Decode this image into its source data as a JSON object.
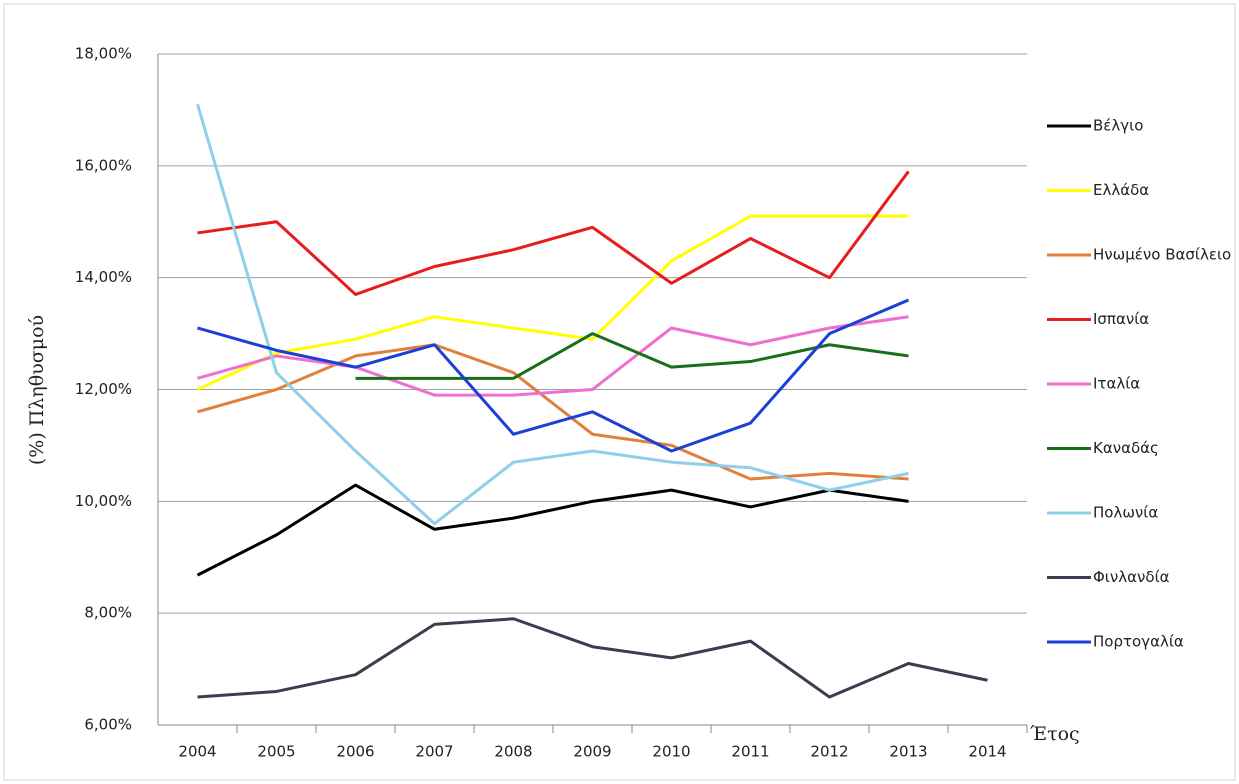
{
  "chart_data": {
    "type": "line",
    "y_label": "(%) Πληθυσμού",
    "x_label": "Έτος",
    "categories": [
      "2004",
      "2005",
      "2006",
      "2007",
      "2008",
      "2009",
      "2010",
      "2011",
      "2012",
      "2013",
      "2014"
    ],
    "ylim": [
      6,
      18
    ],
    "yticks": [
      {
        "value": 6,
        "label": "6,00%"
      },
      {
        "value": 8,
        "label": "8,00%"
      },
      {
        "value": 10,
        "label": "10,00%"
      },
      {
        "value": 12,
        "label": "12,00%"
      },
      {
        "value": 14,
        "label": "14,00%"
      },
      {
        "value": 16,
        "label": "16,00%"
      },
      {
        "value": 18,
        "label": "18,00%"
      }
    ],
    "grid": true,
    "legend": "right",
    "series": [
      {
        "name": "Βέλγιο",
        "color": "#000000",
        "values": [
          8.68,
          9.4,
          10.29,
          9.5,
          9.7,
          10.0,
          10.2,
          9.9,
          10.2,
          10.0,
          null
        ]
      },
      {
        "name": "Ελλάδα",
        "color": "#ffff00",
        "values": [
          12.0,
          12.65,
          12.9,
          13.3,
          13.1,
          12.9,
          14.3,
          15.1,
          15.1,
          15.1,
          null
        ]
      },
      {
        "name": "Ηνωμένο Βασίλειο",
        "color": "#e0803a",
        "values": [
          11.6,
          12.0,
          12.6,
          12.8,
          12.3,
          11.2,
          11.0,
          10.4,
          10.5,
          10.4,
          null
        ]
      },
      {
        "name": "Ισπανία",
        "color": "#e81c1c",
        "values": [
          14.8,
          15.0,
          13.7,
          14.2,
          14.5,
          14.9,
          13.9,
          14.7,
          14.0,
          15.9,
          null
        ]
      },
      {
        "name": "Ιταλία",
        "color": "#ee6fcf",
        "values": [
          12.2,
          12.6,
          12.4,
          11.9,
          11.9,
          12.0,
          13.1,
          12.8,
          13.1,
          13.3,
          null
        ]
      },
      {
        "name": "Καναδάς",
        "color": "#1a6e1a",
        "values": [
          null,
          null,
          12.2,
          12.2,
          12.2,
          13.0,
          12.4,
          12.5,
          12.8,
          12.6,
          null
        ]
      },
      {
        "name": "Πολωνία",
        "color": "#8ecfea",
        "values": [
          17.1,
          12.3,
          10.9,
          9.6,
          10.7,
          10.9,
          10.7,
          10.6,
          10.2,
          10.5,
          null
        ]
      },
      {
        "name": "Φινλανδία",
        "color": "#3c3c50",
        "values": [
          6.5,
          6.6,
          6.9,
          7.8,
          7.9,
          7.4,
          7.2,
          7.5,
          6.5,
          7.1,
          6.8
        ]
      },
      {
        "name": "Πορτογαλία",
        "color": "#1c3fd6",
        "values": [
          13.1,
          12.7,
          12.4,
          12.8,
          11.2,
          11.6,
          10.9,
          11.4,
          13.0,
          13.6,
          null
        ]
      }
    ]
  }
}
